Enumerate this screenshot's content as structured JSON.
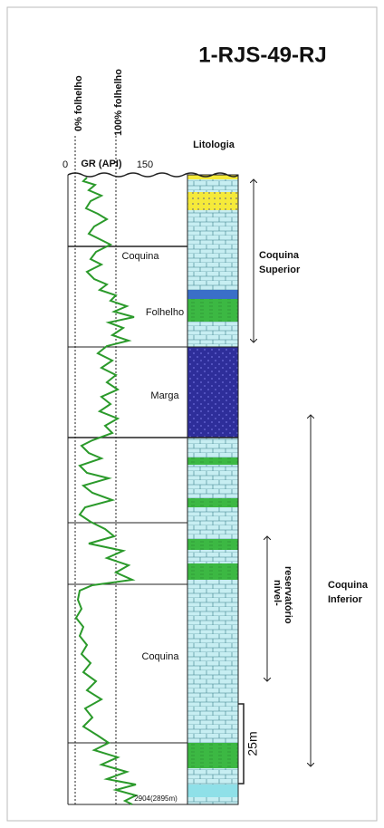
{
  "header": {
    "title": "1-RJS-49-RJ",
    "litologia": "Litologia",
    "gr_min": "0",
    "gr_label": "GR (API)",
    "gr_max": "150",
    "shale_0": "0% folhelho",
    "shale_100": "100% folhelho"
  },
  "lithology_labels": [
    "Coquina",
    "Folhelho",
    "Marga",
    "Coquina"
  ],
  "intervals": {
    "upper": [
      "Coquina",
      "Superior"
    ],
    "lower": [
      "Coquina",
      "Inferior"
    ],
    "reservoir": [
      "nível-",
      "reservatório"
    ]
  },
  "scale": "25m",
  "depth_label": "2904(2895m)"
}
